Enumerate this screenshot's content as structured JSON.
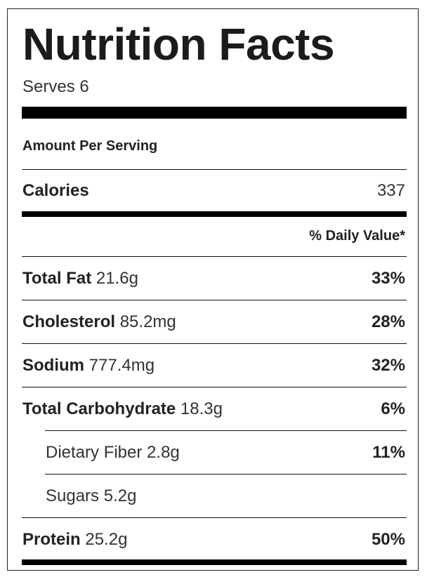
{
  "title": "Nutrition Facts",
  "serves": "Serves 6",
  "amount_per_serving": "Amount Per Serving",
  "calories": {
    "label": "Calories",
    "value": "337"
  },
  "daily_value_header": "% Daily Value*",
  "nutrients": [
    {
      "name": "Total Fat",
      "amount": "21.6g",
      "dv": "33%"
    },
    {
      "name": "Cholesterol",
      "amount": "85.2mg",
      "dv": "28%"
    },
    {
      "name": "Sodium",
      "amount": "777.4mg",
      "dv": "32%"
    },
    {
      "name": "Total Carbohydrate",
      "amount": "18.3g",
      "dv": "6%"
    },
    {
      "name": "Dietary Fiber",
      "amount": "2.8g",
      "dv": "11%"
    },
    {
      "name": "Sugars",
      "amount": "5.2g",
      "dv": ""
    },
    {
      "name": "Protein",
      "amount": "25.2g",
      "dv": "50%"
    }
  ]
}
